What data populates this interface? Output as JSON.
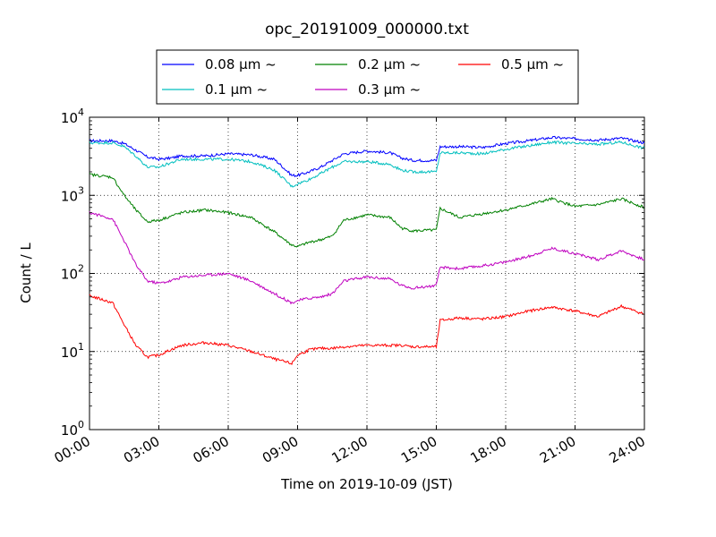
{
  "chart_data": {
    "type": "line",
    "title": "opc_20191009_000000.txt",
    "xlabel": "Time on 2019-10-09 (JST)",
    "ylabel": "Count / L",
    "xlim": [
      "00:00",
      "24:00"
    ],
    "ylim": [
      1,
      10000
    ],
    "yscale": "log",
    "grid": true,
    "legend_position": "top-center, above plot",
    "x_tick_labels": [
      "00:00",
      "03:00",
      "06:00",
      "09:00",
      "12:00",
      "15:00",
      "18:00",
      "21:00",
      "24:00"
    ],
    "y_tick_labels": [
      {
        "base": "10",
        "exp": "0"
      },
      {
        "base": "10",
        "exp": "1"
      },
      {
        "base": "10",
        "exp": "2"
      },
      {
        "base": "10",
        "exp": "3"
      },
      {
        "base": "10",
        "exp": "4"
      }
    ],
    "legend": [
      {
        "label": "0.08 μm ~",
        "color": "#0000ff"
      },
      {
        "label": "0.1 μm ~",
        "color": "#00bfbf"
      },
      {
        "label": "0.2 μm ~",
        "color": "#008000"
      },
      {
        "label": "0.3 μm ~",
        "color": "#bf00bf"
      },
      {
        "label": "0.5 μm ~",
        "color": "#ff0000"
      }
    ],
    "x": [
      "00:00",
      "01:00",
      "01:30",
      "02:00",
      "02:30",
      "03:00",
      "03:30",
      "04:00",
      "05:00",
      "06:00",
      "07:00",
      "08:00",
      "08:45",
      "09:00",
      "09:30",
      "10:00",
      "10:30",
      "11:00",
      "12:00",
      "13:00",
      "13:30",
      "14:00",
      "15:00",
      "15:10",
      "16:00",
      "17:00",
      "18:00",
      "19:00",
      "20:00",
      "21:00",
      "22:00",
      "23:00",
      "24:00"
    ],
    "series": [
      {
        "name": "0.08 μm ~",
        "color": "#0000ff",
        "values": [
          5000,
          5000,
          4600,
          3800,
          3100,
          2900,
          3000,
          3200,
          3200,
          3400,
          3300,
          2900,
          1800,
          1800,
          2000,
          2300,
          2800,
          3400,
          3700,
          3500,
          3000,
          2800,
          2800,
          4200,
          4200,
          4100,
          4600,
          5000,
          5500,
          5300,
          5100,
          5400,
          4700
        ]
      },
      {
        "name": "0.1 μm ~",
        "color": "#00bfbf",
        "values": [
          4700,
          4700,
          4200,
          3200,
          2300,
          2300,
          2600,
          2900,
          2900,
          2900,
          2700,
          2100,
          1300,
          1400,
          1600,
          1900,
          2300,
          2700,
          2700,
          2500,
          2100,
          2000,
          2000,
          3500,
          3500,
          3400,
          3900,
          4300,
          4800,
          4600,
          4500,
          4800,
          4000
        ]
      },
      {
        "name": "0.2 μm ~",
        "color": "#008000",
        "values": [
          1850,
          1700,
          1000,
          650,
          460,
          480,
          540,
          600,
          650,
          600,
          520,
          340,
          230,
          220,
          250,
          270,
          300,
          480,
          560,
          520,
          380,
          350,
          360,
          680,
          520,
          580,
          650,
          760,
          900,
          720,
          760,
          900,
          700
        ]
      },
      {
        "name": "0.3 μm ~",
        "color": "#bf00bf",
        "values": [
          600,
          500,
          260,
          130,
          80,
          75,
          80,
          90,
          95,
          100,
          80,
          55,
          42,
          45,
          48,
          50,
          55,
          80,
          90,
          85,
          70,
          65,
          70,
          120,
          115,
          125,
          140,
          165,
          210,
          180,
          150,
          195,
          150
        ]
      },
      {
        "name": "0.5 μm ~",
        "color": "#ff0000",
        "values": [
          52,
          42,
          22,
          12,
          8.5,
          9,
          10.5,
          12,
          13,
          12,
          10,
          8,
          7,
          9,
          10.5,
          11,
          11,
          11.5,
          12,
          12,
          12,
          11.5,
          11.5,
          25,
          27,
          26,
          28,
          33,
          37,
          33,
          28,
          38,
          30
        ]
      }
    ]
  }
}
